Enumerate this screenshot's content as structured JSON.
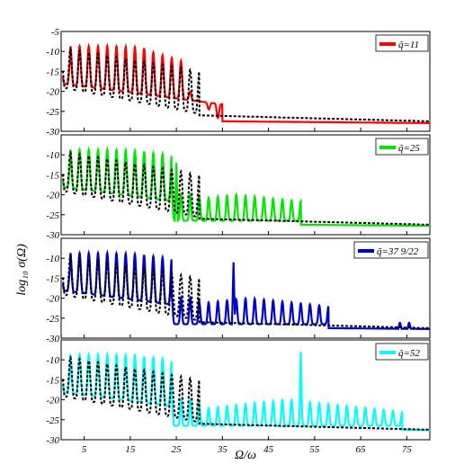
{
  "chart_data": [
    {
      "type": "line",
      "xlim": [
        0,
        80
      ],
      "ylim": [
        -30,
        -5
      ],
      "xticks": [
        5,
        15,
        25,
        35,
        45,
        55,
        65,
        75
      ],
      "yticks": [
        -5,
        -10,
        -15,
        -20,
        -25,
        -30
      ],
      "ytick_labels": [
        "-5",
        "-10",
        "-15",
        "-20",
        "-25",
        "-30"
      ],
      "legend_position": "top-right",
      "series": [
        {
          "name": "q̃=11",
          "color": "#ff0000",
          "style": "solid",
          "max_value_exponent_range": [
            -8,
            -20
          ],
          "cutoff": 35,
          "background_level": -27.5,
          "spikes": []
        },
        {
          "name": "",
          "color": "#000000",
          "style": "dotted",
          "cutoff": 30
        }
      ]
    },
    {
      "type": "line",
      "xlim": [
        0,
        80
      ],
      "ylim": [
        -30,
        -5
      ],
      "xticks": [
        5,
        15,
        25,
        35,
        45,
        55,
        65,
        75
      ],
      "yticks": [
        -10,
        -15,
        -20,
        -25,
        -30
      ],
      "ytick_labels": [
        "-10",
        "-15",
        "-20",
        "-25",
        "-30"
      ],
      "legend_position": "top-right",
      "series": [
        {
          "name": "q̃=25",
          "color": "#00e600",
          "style": "solid",
          "cutoff": 52,
          "background_level": -27.5,
          "spikes": [
            {
              "x": 25,
              "y": -12
            }
          ]
        },
        {
          "name": "",
          "color": "#000000",
          "style": "dotted",
          "cutoff": 30
        }
      ]
    },
    {
      "type": "line",
      "xlim": [
        0,
        80
      ],
      "ylim": [
        -30,
        -5
      ],
      "xticks": [
        5,
        15,
        25,
        35,
        45,
        55,
        65,
        75
      ],
      "yticks": [
        -10,
        -15,
        -20,
        -25,
        -30
      ],
      "ytick_labels": [
        "-10",
        "-15",
        "-20",
        "-25",
        "-30"
      ],
      "legend_position": "top-right",
      "series": [
        {
          "name": "q̃=37 9/22",
          "color": "#0000cc",
          "style": "solid",
          "cutoff": 58,
          "background_level": -27.5,
          "spikes": [
            {
              "x": 37.4,
              "y": -11
            },
            {
              "x": 73.5,
              "y": -26
            },
            {
              "x": 75.5,
              "y": -26
            }
          ]
        },
        {
          "name": "",
          "color": "#000000",
          "style": "dotted",
          "cutoff": 30
        }
      ]
    },
    {
      "type": "line",
      "xlim": [
        0,
        80
      ],
      "ylim": [
        -30,
        -5
      ],
      "xticks": [
        5,
        15,
        25,
        35,
        45,
        55,
        65,
        75
      ],
      "yticks": [
        -10,
        -15,
        -20,
        -25,
        -30
      ],
      "ytick_labels": [
        "-10",
        "-15",
        "-20",
        "-25",
        "-30"
      ],
      "legend_position": "top-right",
      "series": [
        {
          "name": "q̃=52",
          "color": "#00ffff",
          "style": "solid",
          "cutoff": 74,
          "background_level": -27.5,
          "spikes": [
            {
              "x": 52,
              "y": -8
            }
          ]
        },
        {
          "name": "",
          "color": "#000000",
          "style": "dotted",
          "cutoff": 30
        }
      ]
    }
  ],
  "ylabel": "log₁₀ σ(Ω)",
  "xlabel": "Ω/ω",
  "xtick_labels": [
    "5",
    "15",
    "25",
    "35",
    "45",
    "55",
    "65",
    "75"
  ]
}
